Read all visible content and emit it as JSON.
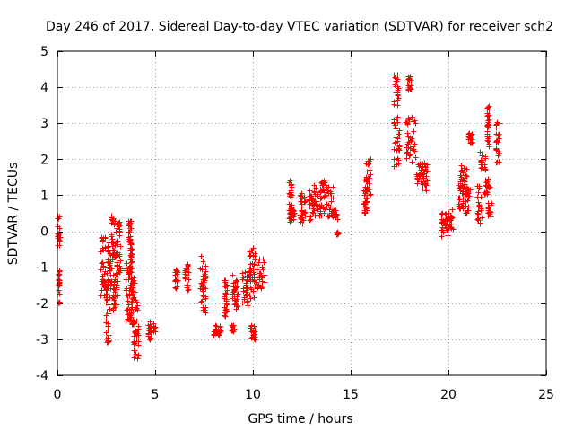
{
  "chart_data": {
    "type": "scatter",
    "title": "Day 246 of 2017, Sidereal Day-to-day VTEC variation (SDTVAR) for receiver sch2",
    "xlabel": "GPS time / hours",
    "ylabel": "SDTVAR / TECUs",
    "xlim": [
      0,
      25
    ],
    "ylim": [
      -4,
      5
    ],
    "xticks": [
      0,
      5,
      10,
      15,
      20,
      25
    ],
    "yticks": [
      -4,
      -3,
      -2,
      -1,
      0,
      1,
      2,
      3,
      4,
      5
    ],
    "xtick_labels": [
      "0",
      "5",
      "10",
      "15",
      "20",
      "25"
    ],
    "ytick_labels": [
      "-4",
      "-3",
      "-2",
      "-1",
      "0",
      "1",
      "2",
      "3",
      "4",
      "5"
    ],
    "grid": true,
    "marker": "+",
    "color": "#ff0000",
    "series": [
      {
        "name": "SDTVAR",
        "segments": [
          {
            "x": [
              0.0,
              0.12
            ],
            "y": [
              -0.5,
              0.45
            ]
          },
          {
            "x": [
              0.02,
              0.1
            ],
            "y": [
              -2.0,
              -1.0
            ]
          },
          {
            "x": [
              2.2,
              2.45
            ],
            "y": [
              -1.8,
              -0.1
            ]
          },
          {
            "x": [
              2.45,
              2.65
            ],
            "y": [
              -3.1,
              -1.1
            ]
          },
          {
            "x": [
              2.55,
              2.75
            ],
            "y": [
              -1.6,
              -0.3
            ]
          },
          {
            "x": [
              2.75,
              3.0
            ],
            "y": [
              -0.8,
              0.45
            ]
          },
          {
            "x": [
              2.8,
              3.1
            ],
            "y": [
              -2.3,
              -1.0
            ]
          },
          {
            "x": [
              3.0,
              3.2
            ],
            "y": [
              -1.2,
              0.4
            ]
          },
          {
            "x": [
              3.6,
              3.75
            ],
            "y": [
              -0.5,
              0.3
            ]
          },
          {
            "x": [
              3.45,
              3.7
            ],
            "y": [
              -2.5,
              -0.8
            ]
          },
          {
            "x": [
              3.7,
              3.85
            ],
            "y": [
              -1.8,
              -0.3
            ]
          },
          {
            "x": [
              3.75,
              3.95
            ],
            "y": [
              -2.6,
              -1.2
            ]
          },
          {
            "x": [
              3.85,
              4.15
            ],
            "y": [
              -3.6,
              -1.8
            ]
          },
          {
            "x": [
              4.6,
              4.8
            ],
            "y": [
              -3.0,
              -2.5
            ]
          },
          {
            "x": [
              4.9,
              5.0
            ],
            "y": [
              -2.8,
              -2.5
            ]
          },
          {
            "x": [
              6.0,
              6.15
            ],
            "y": [
              -1.6,
              -1.0
            ]
          },
          {
            "x": [
              6.5,
              6.7
            ],
            "y": [
              -1.7,
              -0.9
            ]
          },
          {
            "x": [
              7.3,
              7.6
            ],
            "y": [
              -2.3,
              -0.6
            ]
          },
          {
            "x": [
              7.95,
              8.35
            ],
            "y": [
              -2.9,
              -2.6
            ]
          },
          {
            "x": [
              8.5,
              8.7
            ],
            "y": [
              -2.4,
              -1.3
            ]
          },
          {
            "x": [
              8.9,
              9.05
            ],
            "y": [
              -2.8,
              -2.6
            ]
          },
          {
            "x": [
              8.95,
              9.25
            ],
            "y": [
              -2.2,
              -1.2
            ]
          },
          {
            "x": [
              9.45,
              9.85
            ],
            "y": [
              -2.1,
              -1.1
            ]
          },
          {
            "x": [
              9.8,
              10.1
            ],
            "y": [
              -1.9,
              -0.4
            ]
          },
          {
            "x": [
              9.85,
              10.1
            ],
            "y": [
              -3.0,
              -2.6
            ]
          },
          {
            "x": [
              10.1,
              10.6
            ],
            "y": [
              -1.6,
              -0.75
            ]
          },
          {
            "x": [
              11.8,
              12.0
            ],
            "y": [
              0.2,
              1.4
            ]
          },
          {
            "x": [
              11.85,
              12.1
            ],
            "y": [
              0.3,
              0.7
            ]
          },
          {
            "x": [
              12.4,
              12.6
            ],
            "y": [
              0.2,
              1.1
            ]
          },
          {
            "x": [
              12.6,
              13.1
            ],
            "y": [
              0.4,
              1.0
            ]
          },
          {
            "x": [
              12.9,
              13.7
            ],
            "y": [
              0.3,
              1.3
            ]
          },
          {
            "x": [
              13.4,
              13.75
            ],
            "y": [
              0.9,
              1.45
            ]
          },
          {
            "x": [
              13.7,
              14.1
            ],
            "y": [
              0.4,
              1.3
            ]
          },
          {
            "x": [
              14.0,
              14.3
            ],
            "y": [
              0.3,
              0.6
            ]
          },
          {
            "x": [
              14.25,
              14.35
            ],
            "y": [
              -0.1,
              0.0
            ]
          },
          {
            "x": [
              15.65,
              15.85
            ],
            "y": [
              0.4,
              1.5
            ]
          },
          {
            "x": [
              15.75,
              16.0
            ],
            "y": [
              0.9,
              2.0
            ]
          },
          {
            "x": [
              17.15,
              17.5
            ],
            "y": [
              1.8,
              3.2
            ]
          },
          {
            "x": [
              17.2,
              17.45
            ],
            "y": [
              3.5,
              4.4
            ]
          },
          {
            "x": [
              17.9,
              18.1
            ],
            "y": [
              3.9,
              4.3
            ]
          },
          {
            "x": [
              17.8,
              18.3
            ],
            "y": [
              1.9,
              3.2
            ]
          },
          {
            "x": [
              18.35,
              18.8
            ],
            "y": [
              1.3,
              1.9
            ]
          },
          {
            "x": [
              18.6,
              18.95
            ],
            "y": [
              1.1,
              1.9
            ]
          },
          {
            "x": [
              19.6,
              20.0
            ],
            "y": [
              -0.15,
              0.55
            ]
          },
          {
            "x": [
              19.9,
              20.25
            ],
            "y": [
              0.05,
              0.65
            ]
          },
          {
            "x": [
              20.45,
              20.75
            ],
            "y": [
              0.6,
              1.3
            ]
          },
          {
            "x": [
              20.6,
              20.95
            ],
            "y": [
              1.0,
              1.9
            ]
          },
          {
            "x": [
              20.85,
              21.1
            ],
            "y": [
              0.5,
              1.2
            ]
          },
          {
            "x": [
              21.0,
              21.2
            ],
            "y": [
              2.4,
              2.75
            ]
          },
          {
            "x": [
              21.45,
              21.7
            ],
            "y": [
              0.2,
              1.3
            ]
          },
          {
            "x": [
              21.6,
              21.9
            ],
            "y": [
              1.7,
              2.2
            ]
          },
          {
            "x": [
              21.8,
              22.1
            ],
            "y": [
              1.0,
              1.5
            ]
          },
          {
            "x": [
              21.95,
              22.1
            ],
            "y": [
              2.3,
              3.5
            ]
          },
          {
            "x": [
              22.0,
              22.2
            ],
            "y": [
              0.4,
              0.8
            ]
          },
          {
            "x": [
              22.4,
              22.6
            ],
            "y": [
              1.9,
              3.1
            ]
          }
        ]
      }
    ]
  }
}
